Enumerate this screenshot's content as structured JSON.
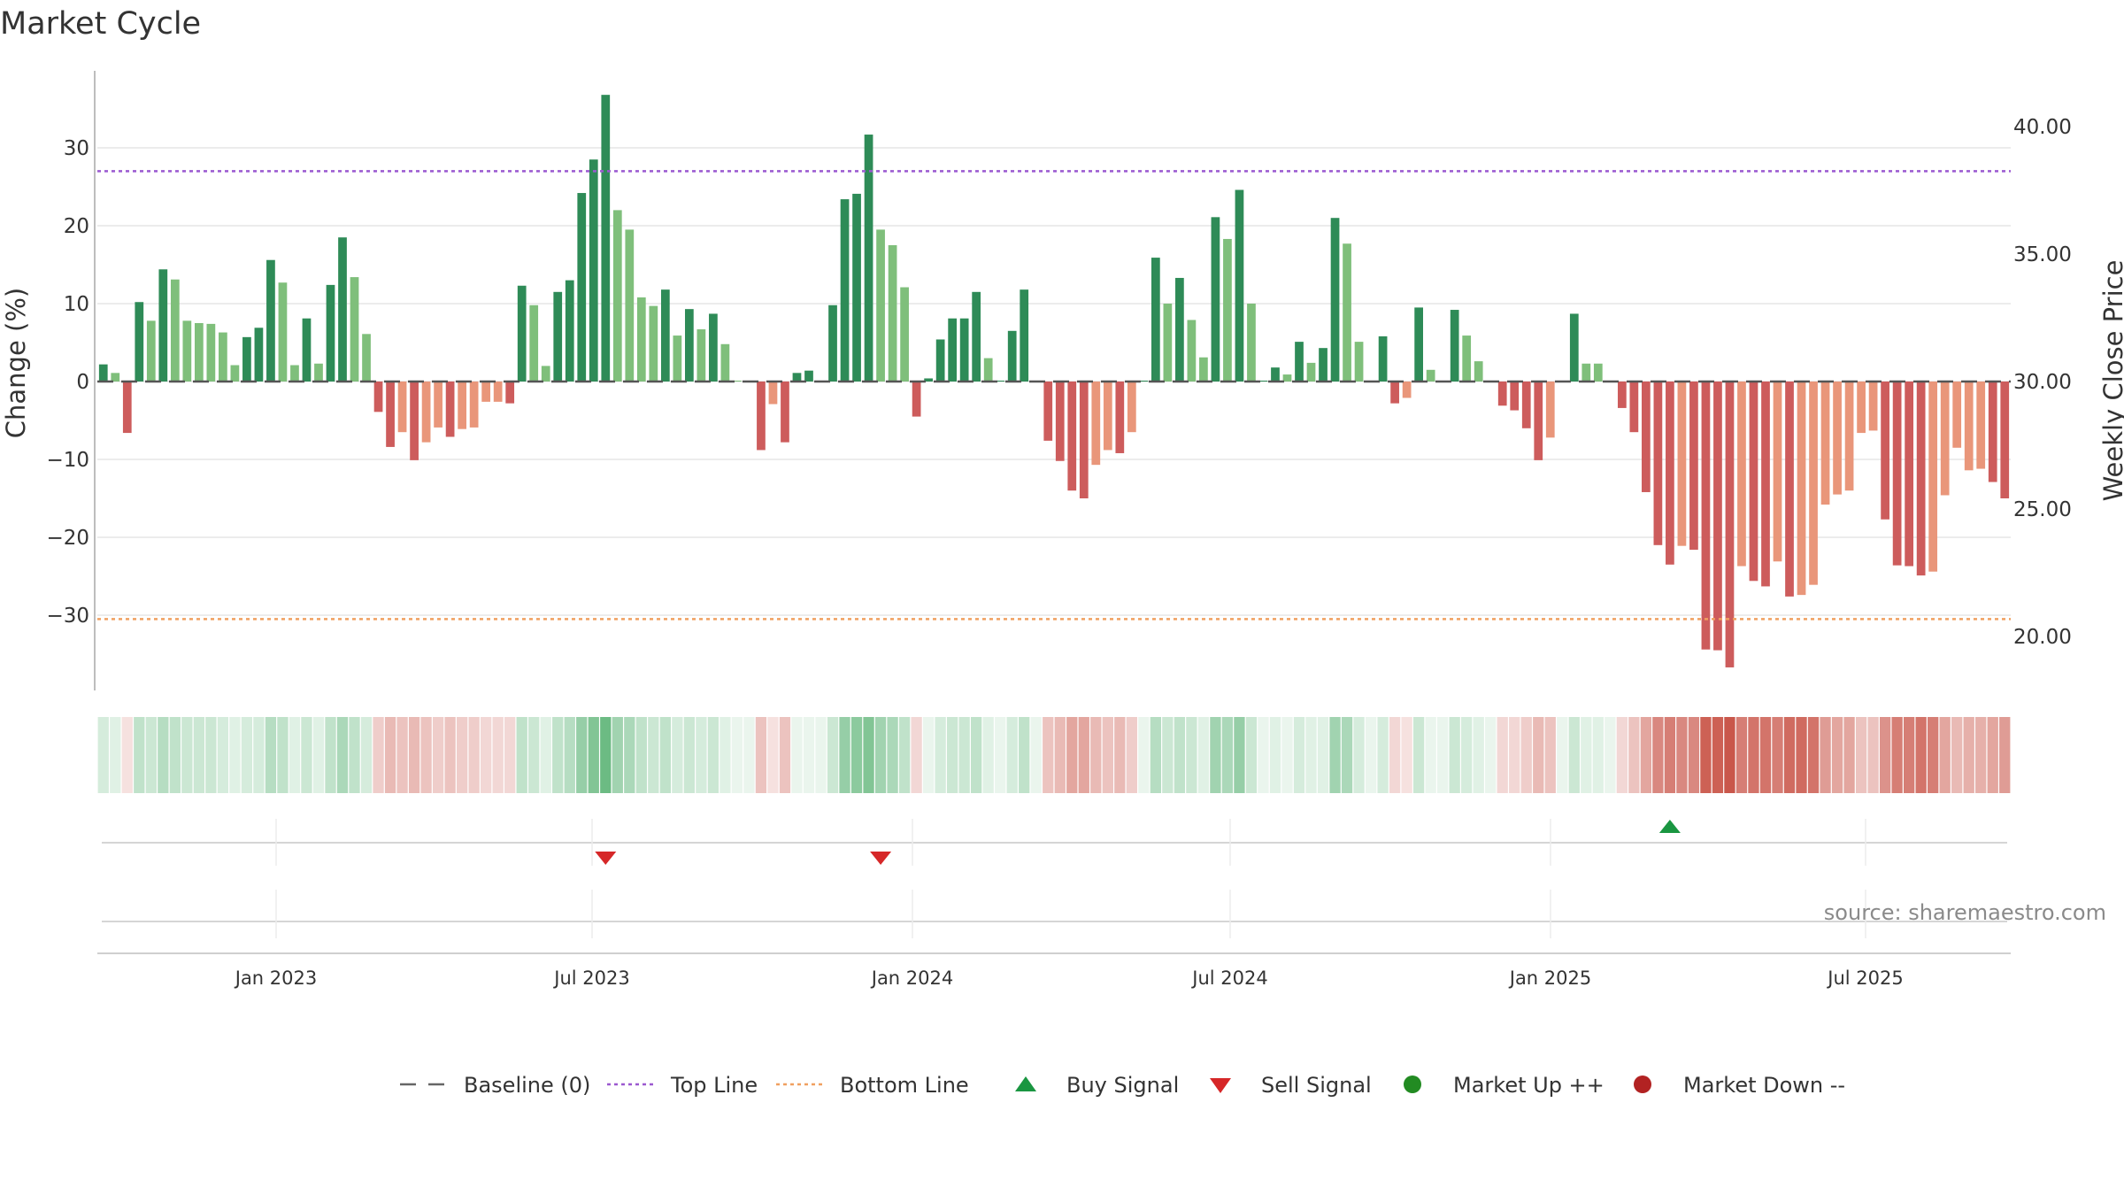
{
  "chart_data": {
    "type": "bar",
    "title": "Market Cycle",
    "ylabel": "Change (%)",
    "ylabel_right": "Weekly Close Price",
    "ylim": [
      -40,
      40
    ],
    "y_ticks": [
      30,
      20,
      10,
      0,
      -10,
      -20,
      -30
    ],
    "y_tick_labels": [
      "30",
      "20",
      "10",
      "0",
      "−10",
      "−20",
      "−30"
    ],
    "y2_ticks": [
      40,
      35,
      30,
      25,
      20
    ],
    "y2_tick_labels": [
      "40.00",
      "35.00",
      "30.00",
      "25.00",
      "20.00"
    ],
    "x_tick_labels": [
      "Jan 2023",
      "Jul 2023",
      "Jan 2024",
      "Jul 2024",
      "Jan 2025",
      "Jul 2025"
    ],
    "top_line": 27,
    "bottom_line": -30.5,
    "source": "source: sharemaestro.com",
    "legend": [
      {
        "label": "Baseline (0)",
        "symbol": "dash",
        "color": "#666666"
      },
      {
        "label": "Top Line",
        "symbol": "dot-line",
        "color": "#9b59d0"
      },
      {
        "label": "Bottom Line",
        "symbol": "dot-line",
        "color": "#f0a060"
      },
      {
        "label": "Buy Signal",
        "symbol": "triangle-up",
        "color": "#1a9641"
      },
      {
        "label": "Sell Signal",
        "symbol": "triangle-down",
        "color": "#d62728"
      },
      {
        "label": "Market Up ++",
        "symbol": "circle",
        "color": "#228b22"
      },
      {
        "label": "Market Down --",
        "symbol": "circle",
        "color": "#b22222"
      }
    ],
    "signals": [
      {
        "type": "sell",
        "week": 42
      },
      {
        "type": "sell",
        "week": 65
      },
      {
        "type": "buy",
        "week": 131
      }
    ],
    "colors": {
      "pos_strong": "#2e8b57",
      "pos_light": "#7fbf7b",
      "neg_strong": "#cd5c5c",
      "neg_light": "#e9967a",
      "top_line": "#9b59d0",
      "bottom_line": "#f0a060",
      "grid": "#e6e6e6"
    },
    "series": [
      {
        "values": [
          2.2,
          1.1,
          -6.6,
          10.2,
          7.8,
          14.4,
          13.1,
          7.8,
          7.5,
          7.4,
          6.3,
          2.1,
          5.7,
          6.9,
          15.6,
          12.7,
          2.1,
          8.1,
          2.3,
          12.4,
          18.5,
          13.4,
          6.1,
          -3.9,
          -8.4,
          -6.5,
          -10.1,
          -7.8,
          -5.9,
          -7.1,
          -6.1,
          -5.9,
          -2.6,
          -2.6,
          -2.8,
          12.3,
          9.8,
          2.0,
          11.5,
          13.0,
          24.2,
          28.5,
          36.8,
          22.0,
          19.5,
          10.8,
          9.7,
          11.8,
          5.9,
          9.3,
          6.7,
          8.7,
          4.8,
          0.0,
          0.0,
          -8.8,
          -2.9,
          -7.8,
          1.1,
          1.4,
          0.0,
          9.8,
          23.4,
          24.1,
          31.7,
          19.5,
          17.5,
          12.1,
          -4.5,
          0.4,
          5.4,
          8.1,
          8.1,
          11.5,
          3.0,
          0.0,
          6.5,
          11.8,
          0.0,
          -7.6,
          -10.2,
          -14.0,
          -15.0,
          -10.7,
          -8.8,
          -9.2,
          -6.5,
          0.0,
          15.9,
          10.0,
          13.3,
          7.9,
          3.1,
          21.1,
          18.3,
          24.6,
          10.0,
          0.0,
          1.8,
          0.9,
          5.1,
          2.4,
          4.3,
          21.0,
          17.7,
          5.1,
          0.0,
          5.8,
          -2.8,
          -2.1,
          9.5,
          1.5,
          0.0,
          9.2,
          5.9,
          2.6,
          0.0,
          -3.1,
          -3.7,
          -6.0,
          -10.1,
          -7.2,
          0.0,
          8.7,
          2.3,
          2.3,
          0.0,
          -3.4,
          -6.5,
          -14.2,
          -21.0,
          -23.5,
          -21.1,
          -21.6,
          -34.4,
          -34.5,
          -36.7,
          -23.7,
          -25.6,
          -26.3,
          -23.1,
          -27.6,
          -27.4,
          -26.1,
          -15.8,
          -14.5,
          -14.0,
          -6.6,
          -6.3,
          -17.7,
          -23.6,
          -23.7,
          -24.9,
          -24.4,
          -14.6,
          -8.5,
          -11.4,
          -11.2,
          -12.9,
          -15.0
        ],
        "strength": [
          1,
          0,
          1,
          1,
          0,
          1,
          0,
          0,
          0,
          0,
          0,
          0,
          1,
          1,
          1,
          0,
          0,
          1,
          0,
          1,
          1,
          0,
          0,
          1,
          1,
          0,
          1,
          0,
          0,
          1,
          0,
          0,
          0,
          0,
          1,
          1,
          0,
          0,
          1,
          1,
          1,
          1,
          1,
          0,
          0,
          0,
          0,
          1,
          0,
          1,
          0,
          1,
          0,
          0,
          0,
          1,
          0,
          1,
          1,
          1,
          1,
          1,
          1,
          1,
          1,
          0,
          0,
          0,
          1,
          1,
          1,
          1,
          1,
          1,
          0,
          1,
          1,
          1,
          1,
          1,
          1,
          1,
          1,
          0,
          0,
          1,
          0,
          1,
          1,
          0,
          1,
          0,
          0,
          1,
          0,
          1,
          0,
          1,
          1,
          0,
          1,
          0,
          1,
          1,
          0,
          0,
          1,
          1,
          1,
          0,
          1,
          0,
          1,
          1,
          0,
          0,
          1,
          1,
          1,
          1,
          1,
          0,
          1,
          1,
          0,
          0,
          1,
          1,
          1,
          1,
          1,
          1,
          0,
          1,
          1,
          1,
          1,
          0,
          1,
          1,
          0,
          1,
          0,
          0,
          0,
          0,
          0,
          0,
          0,
          1,
          1,
          1,
          1,
          0,
          0,
          0,
          0,
          0,
          1,
          1
        ],
        "heat": [
          0.2,
          0.15,
          0.15,
          0.3,
          0.25,
          0.35,
          0.3,
          0.25,
          0.25,
          0.25,
          0.2,
          0.15,
          0.2,
          0.2,
          0.35,
          0.3,
          0.15,
          0.25,
          0.15,
          0.3,
          0.4,
          0.3,
          0.2,
          0.25,
          0.35,
          0.3,
          0.35,
          0.3,
          0.25,
          0.3,
          0.25,
          0.25,
          0.2,
          0.2,
          0.2,
          0.3,
          0.25,
          0.15,
          0.3,
          0.35,
          0.5,
          0.6,
          0.7,
          0.45,
          0.4,
          0.3,
          0.25,
          0.3,
          0.2,
          0.25,
          0.2,
          0.25,
          0.15,
          0.1,
          0.1,
          0.3,
          0.15,
          0.3,
          0.1,
          0.1,
          0.1,
          0.25,
          0.5,
          0.55,
          0.6,
          0.45,
          0.4,
          0.3,
          0.2,
          0.1,
          0.2,
          0.25,
          0.25,
          0.3,
          0.15,
          0.1,
          0.2,
          0.3,
          0.1,
          0.3,
          0.35,
          0.45,
          0.45,
          0.35,
          0.3,
          0.35,
          0.25,
          0.1,
          0.35,
          0.25,
          0.3,
          0.25,
          0.15,
          0.45,
          0.4,
          0.5,
          0.25,
          0.1,
          0.15,
          0.1,
          0.2,
          0.15,
          0.15,
          0.45,
          0.4,
          0.2,
          0.1,
          0.2,
          0.2,
          0.15,
          0.25,
          0.1,
          0.1,
          0.25,
          0.2,
          0.15,
          0.1,
          0.2,
          0.2,
          0.25,
          0.35,
          0.3,
          0.1,
          0.25,
          0.15,
          0.15,
          0.1,
          0.2,
          0.3,
          0.45,
          0.6,
          0.65,
          0.6,
          0.6,
          0.8,
          0.8,
          0.85,
          0.65,
          0.7,
          0.7,
          0.65,
          0.75,
          0.75,
          0.7,
          0.5,
          0.45,
          0.45,
          0.3,
          0.3,
          0.55,
          0.65,
          0.65,
          0.7,
          0.65,
          0.45,
          0.35,
          0.4,
          0.4,
          0.45,
          0.5
        ]
      }
    ]
  }
}
